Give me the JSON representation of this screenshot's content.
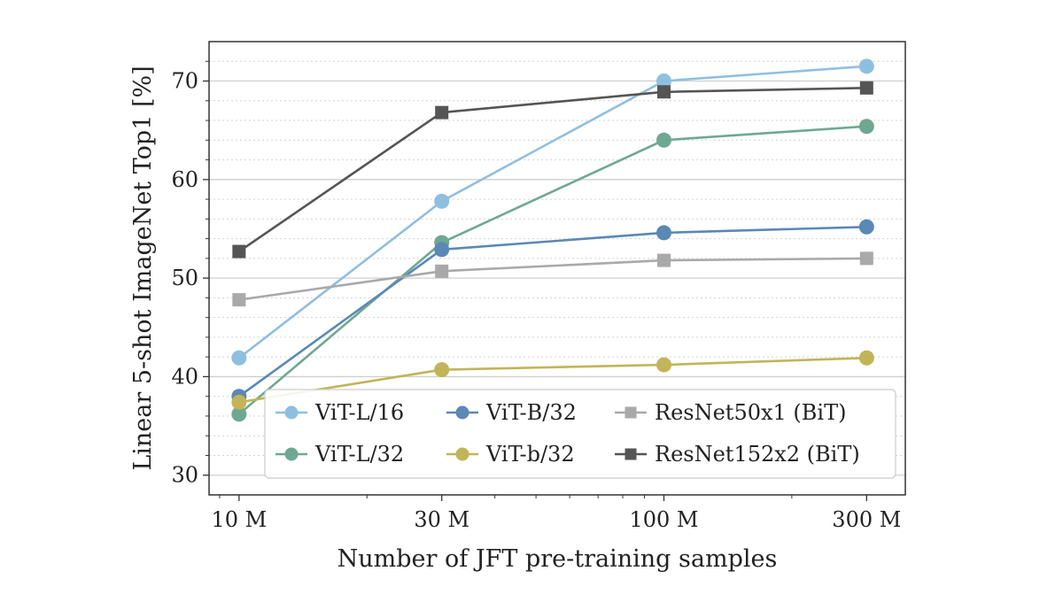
{
  "chart_data": {
    "type": "line",
    "title": "",
    "xlabel": "Number of JFT pre-training samples",
    "ylabel": "Linear 5-shot ImageNet Top1 [%]",
    "x": [
      10,
      30,
      100,
      300
    ],
    "x_unit": "M samples",
    "xscale": "log",
    "xticks": [
      "10 M",
      "30 M",
      "100 M",
      "300 M"
    ],
    "xlim": [
      8.5,
      370
    ],
    "yticks": [
      "30",
      "40",
      "50",
      "60",
      "70"
    ],
    "ytick_values": [
      30,
      40,
      50,
      60,
      70
    ],
    "ylim": [
      28,
      74
    ],
    "grid": true,
    "legend_position": "lower-right",
    "series": [
      {
        "name": "ViT-L/16",
        "values": [
          41.9,
          57.8,
          70.0,
          71.5
        ],
        "color": "#8fbfe0",
        "marker": "circle"
      },
      {
        "name": "ViT-L/32",
        "values": [
          36.2,
          53.6,
          64.0,
          65.4
        ],
        "color": "#6fa892",
        "marker": "circle"
      },
      {
        "name": "ViT-B/32",
        "values": [
          38.0,
          52.9,
          54.6,
          55.2
        ],
        "color": "#5b88b5",
        "marker": "circle"
      },
      {
        "name": "ViT-b/32",
        "values": [
          37.4,
          40.7,
          41.2,
          41.9
        ],
        "color": "#c2b458",
        "marker": "circle"
      },
      {
        "name": "ResNet50x1 (BiT)",
        "values": [
          47.8,
          50.7,
          51.8,
          52.0
        ],
        "color": "#a9a9a9",
        "marker": "square"
      },
      {
        "name": "ResNet152x2 (BiT)",
        "values": [
          52.7,
          66.8,
          68.9,
          69.3
        ],
        "color": "#555555",
        "marker": "square"
      }
    ],
    "legend_order": [
      "ViT-L/16",
      "ViT-B/32",
      "ResNet50x1 (BiT)",
      "ViT-L/32",
      "ViT-b/32",
      "ResNet152x2 (BiT)"
    ]
  }
}
